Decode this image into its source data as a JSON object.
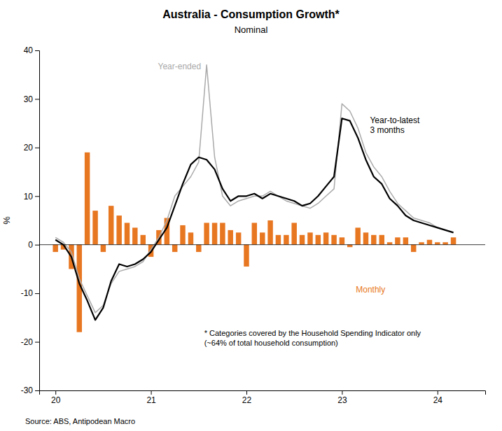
{
  "chart_data": {
    "type": "bar",
    "title": "Australia - Consumption Growth*",
    "subtitle": "Nominal",
    "ylabel": "%",
    "annotations": [
      "* Categories covered by the Household Spending Indicator only\n(~64% of total household consumption)",
      "Source: ABS, Antipodean Macro"
    ],
    "grid": false,
    "xlim": [
      2019.83,
      2024.5
    ],
    "xticks": [
      {
        "value": 2020,
        "label": "20"
      },
      {
        "value": 2021,
        "label": "21"
      },
      {
        "value": 2022,
        "label": "22"
      },
      {
        "value": 2023,
        "label": "23"
      },
      {
        "value": 2024,
        "label": "24"
      }
    ],
    "ylim": [
      -30,
      40
    ],
    "yticks": [
      -30,
      -20,
      -10,
      0,
      10,
      20,
      30,
      40
    ],
    "x": [
      2020.0,
      2020.083,
      2020.167,
      2020.25,
      2020.333,
      2020.417,
      2020.5,
      2020.583,
      2020.667,
      2020.75,
      2020.833,
      2020.917,
      2021.0,
      2021.083,
      2021.167,
      2021.25,
      2021.333,
      2021.417,
      2021.5,
      2021.583,
      2021.667,
      2021.75,
      2021.833,
      2021.917,
      2022.0,
      2022.083,
      2022.167,
      2022.25,
      2022.333,
      2022.417,
      2022.5,
      2022.583,
      2022.667,
      2022.75,
      2022.833,
      2022.917,
      2023.0,
      2023.083,
      2023.167,
      2023.25,
      2023.333,
      2023.417,
      2023.5,
      2023.583,
      2023.667,
      2023.75,
      2023.833,
      2023.917,
      2024.0,
      2024.083,
      2024.167
    ],
    "series": [
      {
        "name": "Monthly",
        "type": "bar",
        "color": "#E87722",
        "values": [
          -1.5,
          -1.0,
          -5.0,
          -18.0,
          19.0,
          7.0,
          -1.5,
          8.0,
          6.0,
          4.5,
          3.5,
          2.0,
          -2.5,
          3.0,
          5.5,
          -1.5,
          4.0,
          2.5,
          -1.5,
          4.5,
          4.5,
          4.5,
          3.0,
          2.5,
          -4.5,
          4.5,
          2.5,
          5.0,
          2.0,
          2.0,
          4.5,
          2.0,
          2.5,
          2.0,
          2.5,
          2.0,
          1.5,
          -0.5,
          3.5,
          2.5,
          2.0,
          2.0,
          0.5,
          1.5,
          1.5,
          -1.5,
          0.5,
          1.0,
          0.5,
          0.5,
          1.5
        ]
      },
      {
        "name": "Year-ended",
        "type": "line",
        "color": "#AAAAAA",
        "values": [
          1.5,
          0.5,
          -1.5,
          -7.0,
          -10.5,
          -14.0,
          -12.5,
          -8.0,
          -5.5,
          -5.0,
          -4.5,
          -3.5,
          -1.0,
          1.5,
          5.0,
          10.0,
          12.0,
          14.0,
          17.0,
          37.0,
          18.0,
          10.0,
          8.0,
          9.0,
          9.5,
          10.0,
          10.0,
          11.0,
          10.0,
          9.0,
          8.5,
          8.0,
          7.5,
          8.5,
          10.0,
          11.5,
          29.0,
          27.5,
          24.0,
          19.0,
          16.0,
          14.0,
          11.0,
          8.5,
          7.0,
          5.5,
          5.0,
          4.5,
          3.5,
          3.0,
          2.5
        ]
      },
      {
        "name": "Year-to-latest\n3 months",
        "type": "line",
        "color": "#000000",
        "values": [
          1.0,
          0.0,
          -2.5,
          -8.0,
          -11.5,
          -15.5,
          -13.0,
          -7.5,
          -4.0,
          -4.5,
          -4.0,
          -3.0,
          -1.5,
          1.0,
          3.5,
          8.0,
          12.5,
          16.5,
          18.0,
          17.5,
          15.5,
          11.5,
          9.0,
          10.0,
          10.0,
          10.5,
          9.5,
          10.5,
          10.0,
          9.5,
          9.0,
          8.0,
          8.5,
          10.0,
          12.0,
          14.0,
          26.0,
          25.5,
          22.0,
          17.5,
          14.0,
          12.5,
          9.5,
          8.0,
          6.0,
          5.0,
          4.5,
          4.0,
          3.5,
          3.0,
          2.5
        ]
      }
    ]
  }
}
